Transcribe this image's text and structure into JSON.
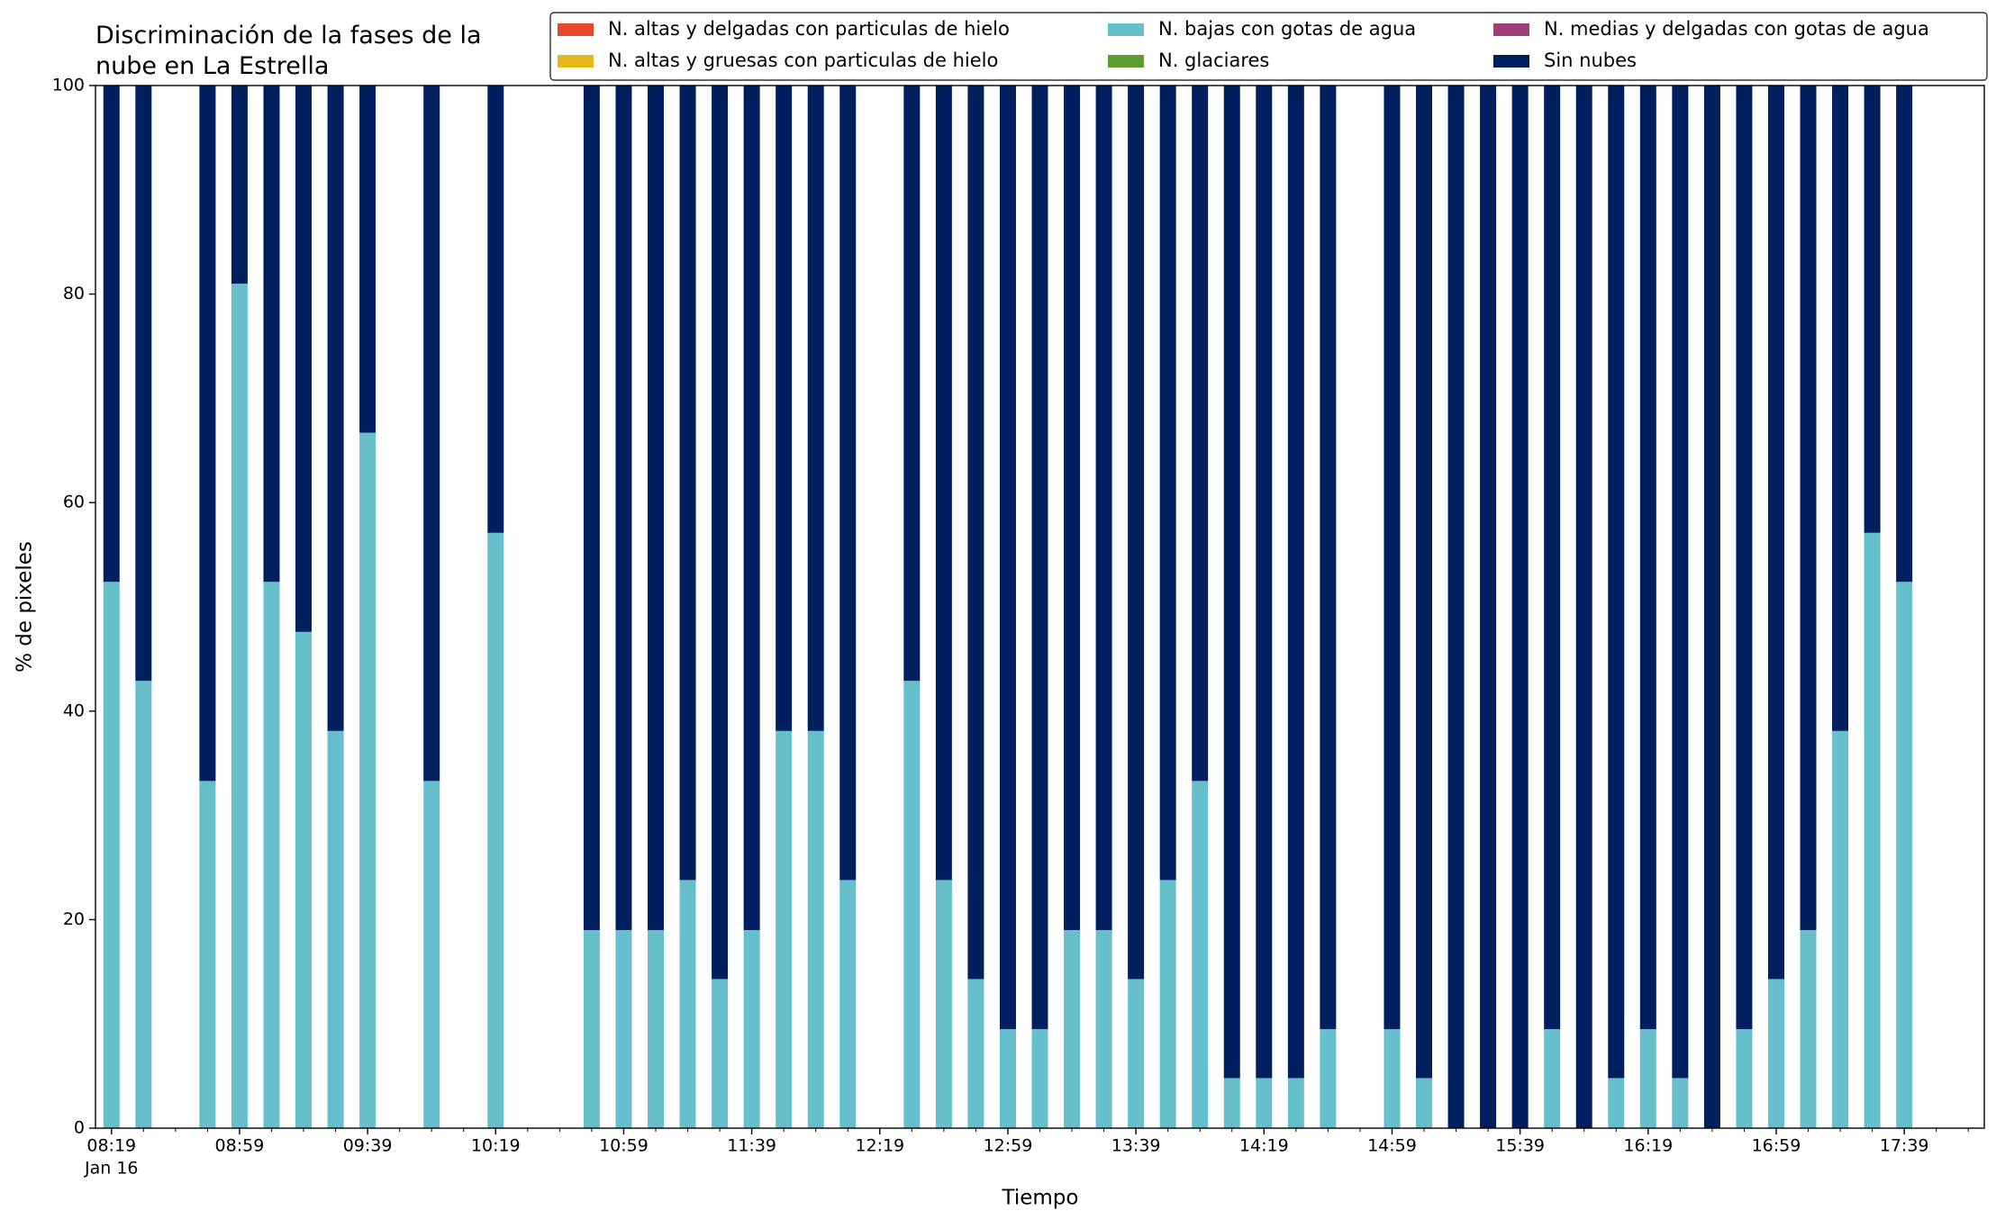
{
  "chart_data": {
    "type": "stacked_bar",
    "title": [
      "Discriminación de la fases de la",
      "nube en La Estrella"
    ],
    "xlabel": "Tiempo",
    "ylabel": "% de pixeles",
    "date": "Jan 16",
    "x": [
      "08:19",
      "08:29",
      "08:49",
      "08:59",
      "09:09",
      "09:19",
      "09:29",
      "09:39",
      "09:59",
      "10:19",
      "10:49",
      "10:59",
      "11:09",
      "11:19",
      "11:29",
      "11:39",
      "11:49",
      "11:59",
      "12:09",
      "12:29",
      "12:39",
      "12:49",
      "12:59",
      "13:09",
      "13:19",
      "13:29",
      "13:39",
      "13:49",
      "13:59",
      "14:09",
      "14:19",
      "14:29",
      "14:39",
      "14:59",
      "15:09",
      "15:19",
      "15:29",
      "15:39",
      "15:49",
      "15:59",
      "16:09",
      "16:19",
      "16:29",
      "16:39",
      "16:49",
      "16:59",
      "17:09",
      "17:19",
      "17:29",
      "17:39"
    ],
    "series": [
      {
        "name": "N. altas y delgadas con particulas de hielo",
        "color": "#e8472e",
        "values": [
          0,
          0,
          0,
          0,
          0,
          0,
          0,
          0,
          0,
          0,
          0,
          0,
          0,
          0,
          0,
          0,
          0,
          0,
          0,
          0,
          0,
          0,
          0,
          0,
          0,
          0,
          0,
          0,
          0,
          0,
          0,
          0,
          0,
          0,
          0,
          0,
          0,
          0,
          0,
          0,
          0,
          0,
          0,
          0,
          0,
          0,
          0,
          0,
          0,
          0
        ]
      },
      {
        "name": "N. altas y gruesas con particulas de hielo",
        "color": "#e6b818",
        "values": [
          0,
          0,
          0,
          0,
          0,
          0,
          0,
          0,
          0,
          0,
          0,
          0,
          0,
          0,
          0,
          0,
          0,
          0,
          0,
          0,
          0,
          0,
          0,
          0,
          0,
          0,
          0,
          0,
          0,
          0,
          0,
          0,
          0,
          0,
          0,
          0,
          0,
          0,
          0,
          0,
          0,
          0,
          0,
          0,
          0,
          0,
          0,
          0,
          0,
          0
        ]
      },
      {
        "name": "N. bajas con gotas de agua",
        "color": "#67bfcb",
        "values": [
          52.4,
          42.9,
          33.3,
          81.0,
          52.4,
          47.6,
          38.1,
          66.7,
          33.3,
          57.1,
          19.0,
          19.0,
          19.0,
          23.8,
          14.3,
          19.0,
          38.1,
          38.1,
          23.8,
          42.9,
          23.8,
          14.3,
          9.5,
          9.5,
          19.0,
          19.0,
          14.3,
          23.8,
          33.3,
          4.8,
          4.8,
          4.8,
          9.5,
          9.5,
          4.8,
          0,
          0,
          0,
          9.5,
          0,
          4.8,
          9.5,
          4.8,
          0,
          9.5,
          14.3,
          19.0,
          38.1,
          57.1,
          52.4
        ]
      },
      {
        "name": "N. glaciares",
        "color": "#5a9e2f",
        "values": [
          0,
          0,
          0,
          0,
          0,
          0,
          0,
          0,
          0,
          0,
          0,
          0,
          0,
          0,
          0,
          0,
          0,
          0,
          0,
          0,
          0,
          0,
          0,
          0,
          0,
          0,
          0,
          0,
          0,
          0,
          0,
          0,
          0,
          0,
          0,
          0,
          0,
          0,
          0,
          0,
          0,
          0,
          0,
          0,
          0,
          0,
          0,
          0,
          0,
          0
        ]
      },
      {
        "name": "N. medias y delgadas con gotas de agua",
        "color": "#a03f77",
        "values": [
          0,
          0,
          0,
          0,
          0,
          0,
          0,
          0,
          0,
          0,
          0,
          0,
          0,
          0,
          0,
          0,
          0,
          0,
          0,
          0,
          0,
          0,
          0,
          0,
          0,
          0,
          0,
          0,
          0,
          0,
          0,
          0,
          0,
          0,
          0,
          0,
          0,
          0,
          0,
          0,
          0,
          0,
          0,
          0,
          0,
          0,
          0,
          0,
          0,
          0
        ]
      },
      {
        "name": "Sin nubes",
        "color": "#001f5f",
        "values": [
          47.6,
          57.1,
          66.7,
          19.0,
          47.6,
          52.4,
          61.9,
          33.3,
          66.7,
          42.9,
          81.0,
          81.0,
          81.0,
          76.2,
          85.7,
          81.0,
          61.9,
          61.9,
          76.2,
          57.1,
          76.2,
          85.7,
          90.5,
          90.5,
          81.0,
          81.0,
          85.7,
          76.2,
          66.7,
          95.2,
          95.2,
          95.2,
          90.5,
          90.5,
          95.2,
          100,
          100,
          100,
          90.5,
          100,
          95.2,
          90.5,
          95.2,
          100,
          90.5,
          85.7,
          81.0,
          61.9,
          42.9,
          47.6
        ]
      }
    ],
    "xlim": [
      "08:14",
      "18:04"
    ],
    "xticks": [
      "08:19",
      "08:59",
      "09:39",
      "10:19",
      "10:59",
      "11:39",
      "12:19",
      "12:59",
      "13:39",
      "14:19",
      "14:59",
      "15:39",
      "16:19",
      "16:59",
      "17:39"
    ],
    "xminorticks": [
      "08:29",
      "08:39",
      "08:49",
      "09:09",
      "09:19",
      "09:29",
      "09:49",
      "09:59",
      "10:09",
      "10:29",
      "10:39",
      "10:49",
      "11:09",
      "11:19",
      "11:29",
      "11:49",
      "11:59",
      "12:09",
      "12:29",
      "12:39",
      "12:49",
      "13:09",
      "13:19",
      "13:29",
      "13:49",
      "13:59",
      "14:09",
      "14:29",
      "14:39",
      "14:49",
      "15:09",
      "15:19",
      "15:29",
      "15:49",
      "15:59",
      "16:09",
      "16:29",
      "16:39",
      "16:49",
      "17:09",
      "17:19",
      "17:29",
      "17:49",
      "17:59"
    ],
    "ylim": [
      0,
      100
    ],
    "yticks": [
      0,
      20,
      40,
      60,
      80,
      100
    ],
    "grid": false,
    "legend": "upper right"
  }
}
